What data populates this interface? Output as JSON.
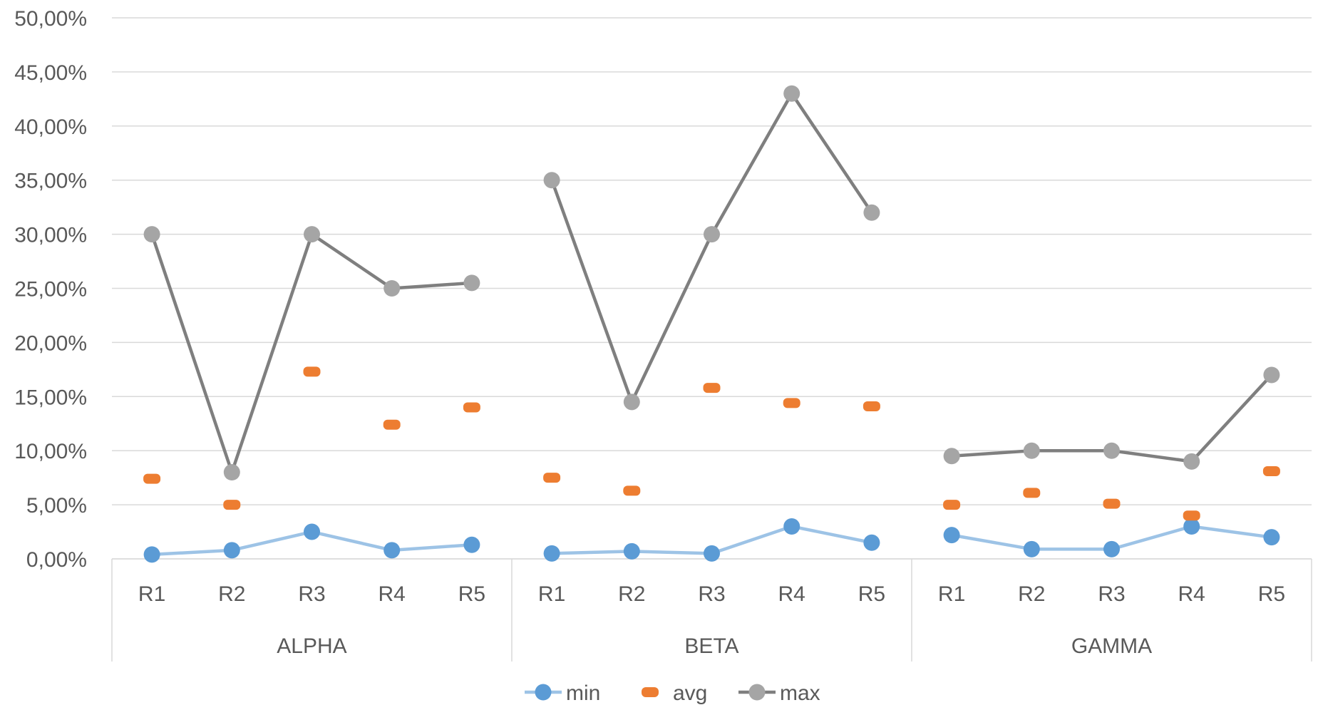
{
  "chart_data": {
    "type": "line",
    "groups": [
      "ALPHA",
      "BETA",
      "GAMMA"
    ],
    "categories": [
      "R1",
      "R2",
      "R3",
      "R4",
      "R5"
    ],
    "y_ticks": [
      "0,00%",
      "5,00%",
      "10,00%",
      "15,00%",
      "20,00%",
      "25,00%",
      "30,00%",
      "35,00%",
      "40,00%",
      "45,00%",
      "50,00%"
    ],
    "ylim": [
      0,
      50
    ],
    "grid": true,
    "legend_position": "bottom",
    "series": [
      {
        "name": "min",
        "color": "#5b9bd5",
        "line_color": "#9dc3e6",
        "style": "line-marker",
        "values": [
          [
            0.4,
            0.8,
            2.5,
            0.8,
            1.3
          ],
          [
            0.5,
            0.7,
            0.5,
            3.0,
            1.5
          ],
          [
            2.2,
            0.9,
            0.9,
            3.0,
            2.0
          ]
        ]
      },
      {
        "name": "avg",
        "color": "#ed7d31",
        "style": "dash-marker",
        "values": [
          [
            7.4,
            5.0,
            17.3,
            12.4,
            14.0
          ],
          [
            7.5,
            6.3,
            15.8,
            14.4,
            14.1
          ],
          [
            5.0,
            6.1,
            5.1,
            4.0,
            8.1
          ]
        ]
      },
      {
        "name": "max",
        "color": "#a5a5a5",
        "line_color": "#7f7f7f",
        "style": "line-marker",
        "values": [
          [
            30.0,
            8.0,
            30.0,
            25.0,
            25.5
          ],
          [
            35.0,
            14.5,
            30.0,
            43.0,
            32.0
          ],
          [
            9.5,
            10.0,
            10.0,
            9.0,
            17.0
          ]
        ]
      }
    ]
  }
}
